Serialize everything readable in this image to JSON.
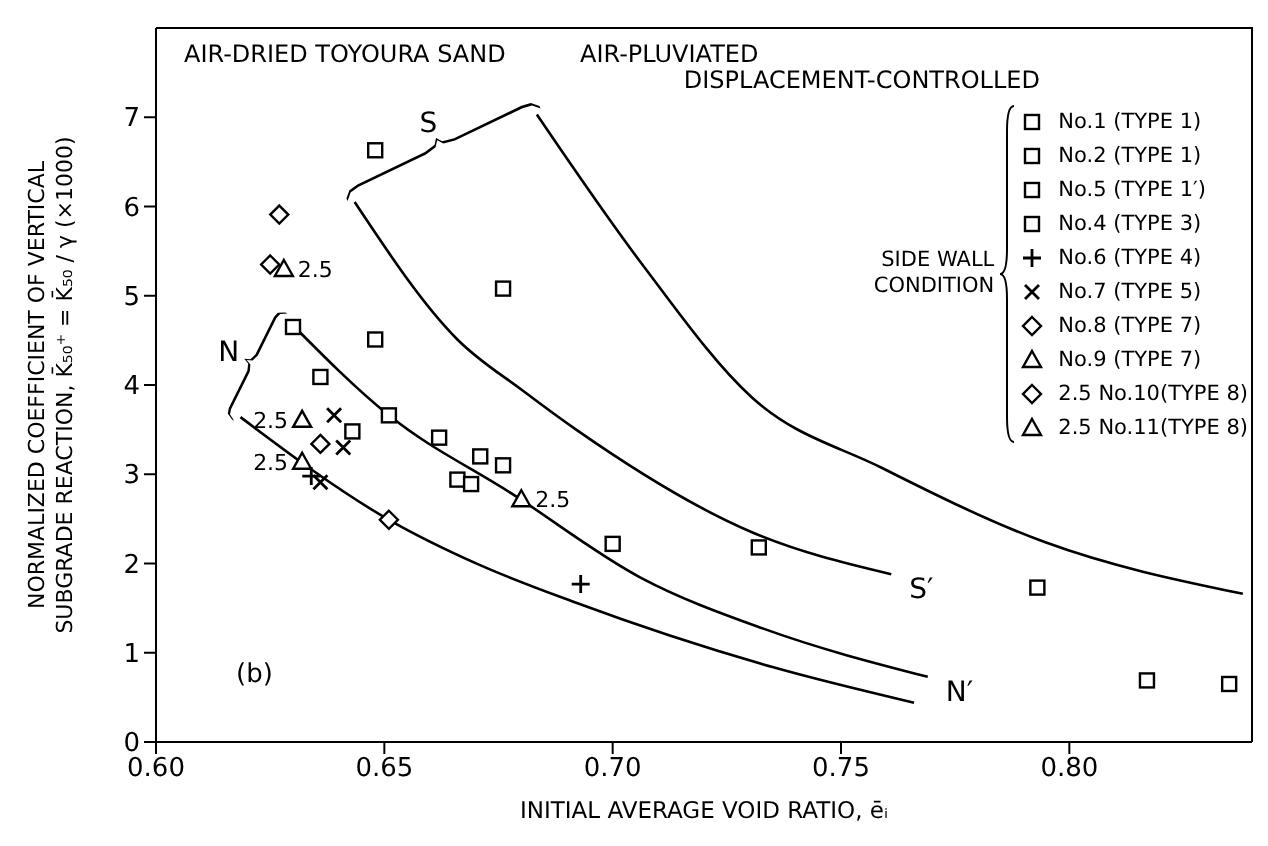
{
  "chart_data": {
    "type": "scatter",
    "title": "AIR-DRIED TOYOURA SAND",
    "subtitle": "AIR-PLUVIATED DISPLACEMENT-CONTROLLED",
    "xlabel": "INITIAL AVERAGE VOID RATIO, ēᵢ",
    "ylabel": "NORMALIZED COEFFICIENT OF VERTICAL SUBGRADE REACTION, K̄₅₀⁺ = K̄₅₀ / γ (×1000)",
    "legend_title": "SIDE WALL CONDITION",
    "legend": "top right",
    "xlim": [
      0.6,
      0.84
    ],
    "xticks": [
      {
        "value": 0.6,
        "label": "0.60"
      },
      {
        "value": 0.65,
        "label": "0.65"
      },
      {
        "value": 0.7,
        "label": "0.70"
      },
      {
        "value": 0.75,
        "label": "0.75"
      },
      {
        "value": 0.8,
        "label": "0.80"
      }
    ],
    "ylim": [
      0,
      8
    ],
    "yticks": [
      0,
      1,
      2,
      3,
      4,
      5,
      6,
      7
    ],
    "series": [
      {
        "name": "No.1 (TYPE 1)",
        "marker": "square",
        "color": "#000000",
        "x": [
          0.643,
          0.671,
          0.676,
          0.666,
          0.732,
          0.817,
          0.835
        ],
        "values": [
          3.48,
          3.2,
          3.1,
          2.94,
          2.18,
          0.69,
          0.65
        ]
      },
      {
        "name": "No.2 (TYPE 1)",
        "marker": "square",
        "color": "#000000",
        "x": [
          0.648,
          0.676,
          0.793
        ],
        "values": [
          6.63,
          5.08,
          1.73
        ]
      },
      {
        "name": "No.5 (TYPE 1′)",
        "marker": "square",
        "color": "#000000",
        "x": [
          0.648,
          0.636,
          0.662,
          0.669
        ],
        "values": [
          4.51,
          4.09,
          3.41,
          2.89
        ]
      },
      {
        "name": "No.4 (TYPE 3)",
        "marker": "square",
        "color": "#000000",
        "x": [
          0.63,
          0.651,
          0.7
        ],
        "values": [
          4.65,
          3.66,
          2.22
        ]
      },
      {
        "name": "No.6 (TYPE 4)",
        "marker": "cross",
        "color": "#000000",
        "x": [
          0.634,
          0.693
        ],
        "values": [
          2.98,
          1.77
        ]
      },
      {
        "name": "No.7 (TYPE 5)",
        "color": "#000000",
        "x": [
          0.639,
          0.641,
          0.636
        ],
        "values": [
          3.66,
          3.3,
          2.91
        ]
      },
      {
        "name": "No.8 (TYPE 7)",
        "marker": "diamond",
        "color": "#000000",
        "x": [
          0.627,
          0.625
        ],
        "values": [
          5.91,
          5.35
        ]
      },
      {
        "name": "No.9 (TYPE 7)",
        "marker": "triangle",
        "color": "#000000",
        "x": [
          0.628,
          0.68
        ],
        "values": [
          5.3,
          2.72
        ]
      },
      {
        "name": "2.5 No.10(TYPE 8)",
        "marker": "diamond",
        "color": "#000000",
        "x": [
          0.636,
          0.651
        ],
        "values": [
          3.34,
          2.49
        ]
      },
      {
        "name": "2.5 No.11(TYPE 8)",
        "marker": "triangle",
        "color": "#000000",
        "x": [
          0.632,
          0.632
        ],
        "values": [
          3.61,
          3.14
        ]
      },
      {
        "type": "line",
        "marker": "none",
        "color": "#000000",
        "x": [
          0.6185,
          0.651,
          0.6706,
          0.692,
          0.735,
          0.766
        ],
        "values": [
          3.64,
          2.49,
          1.99,
          1.56,
          0.84,
          0.44
        ]
      },
      {
        "type": "line",
        "marker": "none",
        "color": "#000000",
        "x": [
          0.629,
          0.651,
          0.678,
          0.7062,
          0.733,
          0.769
        ],
        "values": [
          4.72,
          3.66,
          2.78,
          1.84,
          1.27,
          0.73
        ]
      },
      {
        "type": "line",
        "marker": "none",
        "color": "#000000",
        "x": [
          0.6435,
          0.666,
          0.6805,
          0.692,
          0.7305,
          0.761
        ],
        "values": [
          6.05,
          4.51,
          3.93,
          3.5,
          2.35,
          1.88
        ]
      },
      {
        "type": "line",
        "marker": "none",
        "color": "#000000",
        "x": [
          0.6834,
          0.7062,
          0.7305,
          0.759,
          0.7946,
          0.838
        ],
        "values": [
          7.03,
          5.37,
          3.86,
          3.07,
          2.24,
          1.66
        ]
      }
    ],
    "annotations": [
      "N",
      "S",
      {
        "text": "S′",
        "x": 0.761,
        "y": 1.88
      },
      {
        "text": "N′",
        "x": 0.769,
        "y": 0.73
      },
      {
        "text": "2.5",
        "x": 0.628,
        "y": 5.3
      },
      {
        "text": "2.5",
        "x": 0.68,
        "y": 2.72
      },
      {
        "text": "2.5",
        "x": 0.632,
        "y": 3.61
      },
      {
        "text": "2.5",
        "x": 0.632,
        "y": 3.14
      },
      "(b)"
    ]
  }
}
